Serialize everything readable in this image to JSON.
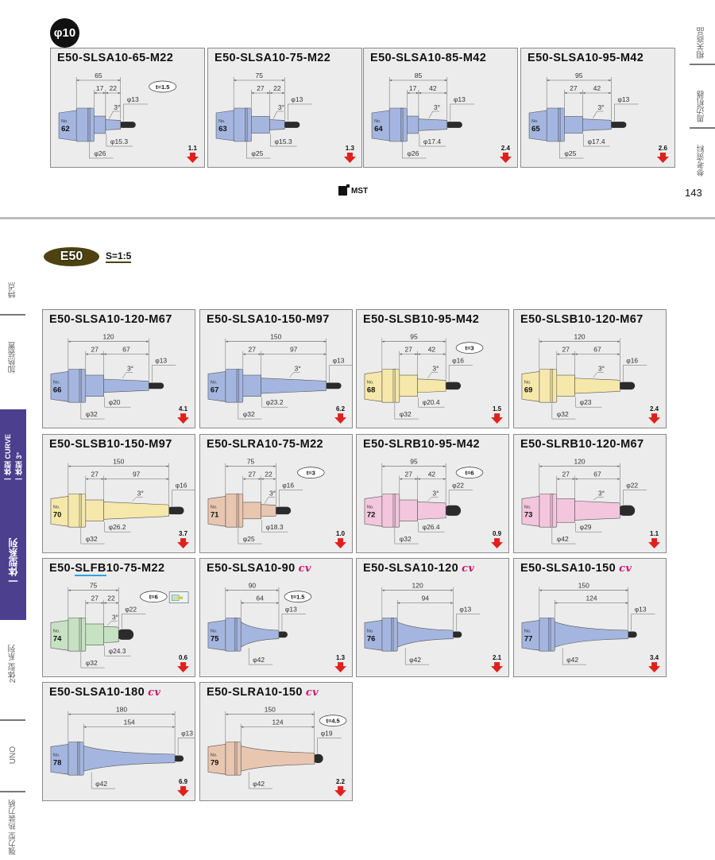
{
  "right_nav": {
    "items": [
      {
        "label": "相关商品"
      },
      {
        "label": "周边机器"
      },
      {
        "label": "参考资料"
      }
    ]
  },
  "page_number": "143",
  "logo": "MST",
  "no_label": "No.",
  "colors": {
    "blue": "#a4b6e0",
    "yellow": "#f6e8aa",
    "pink": "#f3c6de",
    "peach": "#e9c6b0",
    "green": "#c6e2c2",
    "shank": "#2b2b2b",
    "weight_arrow": "#e0201b",
    "nav_active": "#4b3f8e",
    "series_badge": "#4d4210"
  },
  "top_section": {
    "badge": "φ10",
    "cards": [
      {
        "no": "62",
        "title": "E50-SLSA10-65-M22",
        "color": "#a4b6e0",
        "total": 65,
        "segs": [
          17,
          22
        ],
        "dia_shank": "φ13",
        "dia_body": "φ15.3",
        "dia_base": "φ26",
        "angle": "3°",
        "t": "t=1.5",
        "weight": "1.1"
      },
      {
        "no": "63",
        "title": "E50-SLSA10-75-M22",
        "color": "#a4b6e0",
        "total": 75,
        "segs": [
          27,
          22
        ],
        "dia_shank": "φ13",
        "dia_body": "φ15.3",
        "dia_base": "φ25",
        "angle": "3°",
        "weight": "1.3"
      },
      {
        "no": "64",
        "title": "E50-SLSA10-85-M42",
        "color": "#a4b6e0",
        "total": 85,
        "segs": [
          17,
          42
        ],
        "dia_shank": "φ13",
        "dia_body": "φ17.4",
        "dia_base": "φ26",
        "angle": "3°",
        "weight": "2.4"
      },
      {
        "no": "65",
        "title": "E50-SLSA10-95-M42",
        "color": "#a4b6e0",
        "total": 95,
        "segs": [
          27,
          42
        ],
        "dia_shank": "φ13",
        "dia_body": "φ17.4",
        "dia_base": "φ25",
        "angle": "3°",
        "weight": "2.6"
      }
    ]
  },
  "bottom_section": {
    "series_badge": "E50",
    "scale": "S=1:5",
    "cards": [
      {
        "no": "66",
        "title": "E50-SLSA10-120-M67",
        "color": "#a4b6e0",
        "total": 120,
        "segs": [
          27,
          67
        ],
        "dia_shank": "φ13",
        "dia_body": "φ20",
        "dia_base": "φ32",
        "angle": "3°",
        "weight": "4.1"
      },
      {
        "no": "67",
        "title": "E50-SLSA10-150-M97",
        "color": "#a4b6e0",
        "total": 150,
        "segs": [
          27,
          97
        ],
        "dia_shank": "φ13",
        "dia_body": "φ23.2",
        "dia_base": "φ32",
        "angle": "3°",
        "weight": "6.2"
      },
      {
        "no": "68",
        "title": "E50-SLSB10-95-M42",
        "color": "#f6e8aa",
        "total": 95,
        "segs": [
          27,
          42
        ],
        "dia_shank": "φ16",
        "dia_body": "φ20.4",
        "dia_base": "φ32",
        "angle": "3°",
        "t": "t=3",
        "weight": "1.5"
      },
      {
        "no": "69",
        "title": "E50-SLSB10-120-M67",
        "color": "#f6e8aa",
        "total": 120,
        "segs": [
          27,
          67
        ],
        "dia_shank": "φ16",
        "dia_body": "φ23",
        "dia_base": "φ32",
        "angle": "3°",
        "weight": "2.4"
      },
      {
        "no": "70",
        "title": "E50-SLSB10-150-M97",
        "color": "#f6e8aa",
        "total": 150,
        "segs": [
          27,
          97
        ],
        "dia_shank": "φ16",
        "dia_body": "φ26.2",
        "dia_base": "φ32",
        "angle": "3°",
        "weight": "3.7"
      },
      {
        "no": "71",
        "title": "E50-SLRA10-75-M22",
        "color": "#e9c6b0",
        "total": 75,
        "segs": [
          27,
          22
        ],
        "dia_shank": "φ16",
        "dia_body": "φ18.3",
        "dia_base": "φ25",
        "angle": "3°",
        "t": "t=3",
        "weight": "1.0"
      },
      {
        "no": "72",
        "title": "E50-SLRB10-95-M42",
        "color": "#f3c6de",
        "total": 95,
        "segs": [
          27,
          42
        ],
        "dia_shank": "φ22",
        "dia_body": "φ26.4",
        "dia_base": "φ32",
        "angle": "3°",
        "t": "t=6",
        "weight": "0.9"
      },
      {
        "no": "73",
        "title": "E50-SLRB10-120-M67",
        "color": "#f3c6de",
        "total": 120,
        "segs": [
          27,
          67
        ],
        "dia_shank": "φ22",
        "dia_body": "φ29",
        "dia_base": "φ42",
        "angle": "3°",
        "weight": "1.1"
      },
      {
        "no": "74",
        "title_parts": [
          "E50-",
          "SLFB",
          "10-75-M22"
        ],
        "color": "#c6e2c2",
        "total": 75,
        "segs": [
          27,
          22
        ],
        "dia_shank": "φ22",
        "dia_body": "φ24.3",
        "dia_base": "φ32",
        "angle": "3°",
        "t": "t=6",
        "weight": "0.6",
        "coolant_icon": true
      },
      {
        "no": "75",
        "title": "E50-SLSA10-90",
        "cv": "cv",
        "color": "#a4b6e0",
        "total": 90,
        "segs": [
          64
        ],
        "dia_shank": "φ13",
        "dia_base": "φ42",
        "t": "t=1.5",
        "weight": "1.3"
      },
      {
        "no": "76",
        "title": "E50-SLSA10-120",
        "cv": "cv",
        "color": "#a4b6e0",
        "total": 120,
        "segs": [
          94
        ],
        "dia_shank": "φ13",
        "dia_base": "φ42",
        "weight": "2.1"
      },
      {
        "no": "77",
        "title": "E50-SLSA10-150",
        "cv": "cv",
        "color": "#a4b6e0",
        "total": 150,
        "segs": [
          124
        ],
        "dia_shank": "φ13",
        "dia_base": "φ42",
        "weight": "3.4"
      },
      {
        "no": "78",
        "title": "E50-SLSA10-180",
        "cv": "cv",
        "color": "#a4b6e0",
        "total": 180,
        "segs": [
          154
        ],
        "dia_shank": "φ13",
        "dia_base": "φ42",
        "weight": "6.9"
      },
      {
        "no": "79",
        "title": "E50-SLRA10-150",
        "cv": "cv",
        "color": "#e9c6b0",
        "total": 150,
        "segs": [
          124
        ],
        "dia_shank": "φ19",
        "dia_base": "φ42",
        "t": "t=4.5",
        "weight": "2.2"
      }
    ]
  },
  "left_nav": {
    "items": [
      {
        "label": "特点"
      },
      {
        "label": "加热装置"
      },
      {
        "label": "一体型系列",
        "sub": [
          "一体型 3°",
          "一体型 CURVE"
        ],
        "active": true
      },
      {
        "label": "2体型 系列"
      },
      {
        "label": "UNO"
      },
      {
        "label": "强力型 热装刀柄"
      }
    ]
  }
}
